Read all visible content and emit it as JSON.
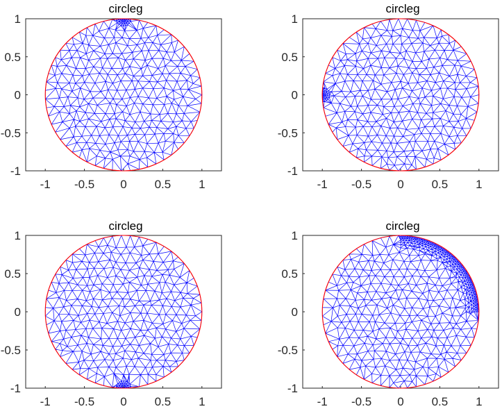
{
  "figure": {
    "subplots": [
      {
        "title": "circleg",
        "refinement": "top"
      },
      {
        "title": "circleg",
        "refinement": "left"
      },
      {
        "title": "circleg",
        "refinement": "bottom"
      },
      {
        "title": "circleg",
        "refinement": "arc-top-right"
      }
    ]
  },
  "chart_data": [
    {
      "type": "mesh",
      "title": "circleg",
      "xlabel": "",
      "ylabel": "",
      "xlim": [
        -1.25,
        1.25
      ],
      "ylim": [
        -1,
        1
      ],
      "xticks": [
        -1,
        -0.5,
        0,
        0.5,
        1
      ],
      "xtick_labels": [
        "-1",
        "-0.5",
        "0",
        "0.5",
        "1"
      ],
      "yticks": [
        1,
        0.5,
        0,
        -0.5,
        -1
      ],
      "ytick_labels": [
        "1",
        "0.5",
        "0",
        "-0.5",
        "-1"
      ],
      "geometry": {
        "shape": "circle",
        "center": [
          0,
          0
        ],
        "radius": 1
      },
      "refinement_point": [
        0,
        1
      ],
      "colors": {
        "mesh": "#0000ff",
        "boundary": "#ff0000"
      }
    },
    {
      "type": "mesh",
      "title": "circleg",
      "xlabel": "",
      "ylabel": "",
      "xlim": [
        -1.25,
        1.25
      ],
      "ylim": [
        -1,
        1
      ],
      "xticks": [
        -1,
        -0.5,
        0,
        0.5,
        1
      ],
      "xtick_labels": [
        "-1",
        "-0.5",
        "0",
        "0.5",
        "1"
      ],
      "yticks": [
        1,
        0.5,
        0,
        -0.5,
        -1
      ],
      "ytick_labels": [
        "1",
        "0.5",
        "0",
        "-0.5",
        "-1"
      ],
      "geometry": {
        "shape": "circle",
        "center": [
          0,
          0
        ],
        "radius": 1
      },
      "refinement_point": [
        -1,
        0
      ],
      "colors": {
        "mesh": "#0000ff",
        "boundary": "#ff0000"
      }
    },
    {
      "type": "mesh",
      "title": "circleg",
      "xlabel": "",
      "ylabel": "",
      "xlim": [
        -1.25,
        1.25
      ],
      "ylim": [
        -1,
        1
      ],
      "xticks": [
        -1,
        -0.5,
        0,
        0.5,
        1
      ],
      "xtick_labels": [
        "-1",
        "-0.5",
        "0",
        "0.5",
        "1"
      ],
      "yticks": [
        1,
        0.5,
        0,
        -0.5,
        -1
      ],
      "ytick_labels": [
        "1",
        "0.5",
        "0",
        "-0.5",
        "-1"
      ],
      "geometry": {
        "shape": "circle",
        "center": [
          0,
          0
        ],
        "radius": 1
      },
      "refinement_point": [
        0,
        -1
      ],
      "colors": {
        "mesh": "#0000ff",
        "boundary": "#ff0000"
      }
    },
    {
      "type": "mesh",
      "title": "circleg",
      "xlabel": "",
      "ylabel": "",
      "xlim": [
        -1.25,
        1.25
      ],
      "ylim": [
        -1,
        1
      ],
      "xticks": [
        -1,
        -0.5,
        0,
        0.5,
        1
      ],
      "xtick_labels": [
        "-1",
        "-0.5",
        "0",
        "0.5",
        "1"
      ],
      "yticks": [
        1,
        0.5,
        0,
        -0.5,
        -1
      ],
      "ytick_labels": [
        "1",
        "0.5",
        "0",
        "-0.5",
        "-1"
      ],
      "geometry": {
        "shape": "circle",
        "center": [
          0,
          0
        ],
        "radius": 1
      },
      "refinement_arc_degrees": [
        0,
        90
      ],
      "colors": {
        "mesh": "#0000ff",
        "boundary": "#ff0000"
      }
    }
  ]
}
